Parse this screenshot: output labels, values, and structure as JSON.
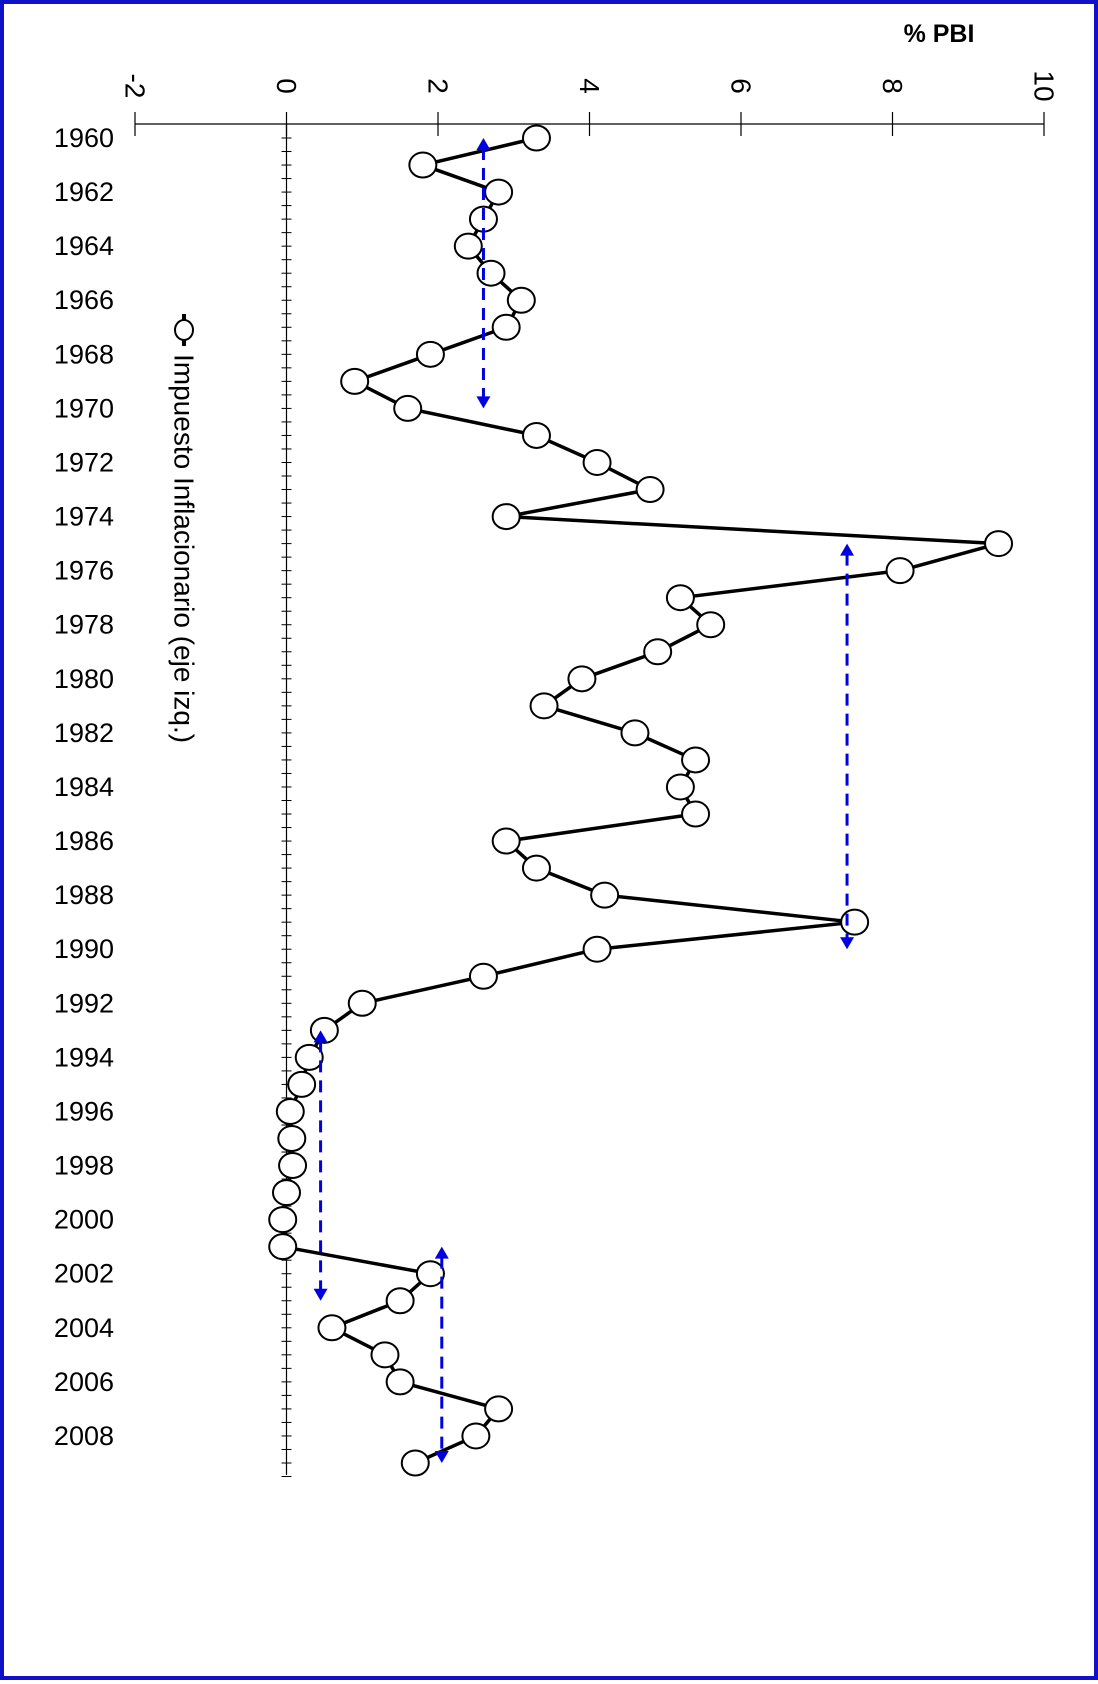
{
  "chart_data": {
    "type": "line",
    "title": "",
    "orientation": "rotated-90-clockwise",
    "unit_label": "% PBI",
    "xlabel": "",
    "ylabel": "% PBI",
    "ylim": [
      -2,
      10
    ],
    "y_ticks": [
      -2,
      0,
      2,
      4,
      6,
      8,
      10
    ],
    "xlim": [
      1960,
      2009
    ],
    "x_tick_labels": [
      1960,
      1962,
      1964,
      1966,
      1968,
      1970,
      1972,
      1974,
      1976,
      1978,
      1980,
      1982,
      1984,
      1986,
      1988,
      1990,
      1992,
      1994,
      1996,
      1998,
      2000,
      2002,
      2004,
      2006,
      2008
    ],
    "grid": false,
    "legend_position": "left, rotated",
    "series": [
      {
        "name": "Impuesto Inflacionario (eje izq.)",
        "color": "#000000",
        "marker": "open-circle",
        "x": [
          1960,
          1961,
          1962,
          1963,
          1964,
          1965,
          1966,
          1967,
          1968,
          1969,
          1970,
          1971,
          1972,
          1973,
          1974,
          1975,
          1976,
          1977,
          1978,
          1979,
          1980,
          1981,
          1982,
          1983,
          1984,
          1985,
          1986,
          1987,
          1988,
          1989,
          1990,
          1991,
          1992,
          1993,
          1994,
          1995,
          1996,
          1997,
          1998,
          1999,
          2000,
          2001,
          2002,
          2003,
          2004,
          2005,
          2006,
          2007,
          2008,
          2009
        ],
        "values": [
          3.3,
          1.8,
          2.8,
          2.6,
          2.4,
          2.7,
          3.1,
          2.9,
          1.9,
          0.9,
          1.6,
          3.3,
          4.1,
          4.8,
          2.9,
          9.4,
          8.1,
          5.2,
          5.6,
          4.9,
          3.9,
          3.4,
          4.6,
          5.4,
          5.2,
          5.4,
          2.9,
          3.3,
          4.2,
          7.5,
          4.1,
          2.6,
          1.0,
          0.5,
          0.3,
          0.2,
          0.05,
          0.07,
          0.08,
          0.0,
          -0.05,
          -0.05,
          1.9,
          1.5,
          0.6,
          1.3,
          1.5,
          2.8,
          2.5,
          1.7
        ]
      }
    ],
    "annotations": [
      {
        "type": "average-arrow",
        "color": "#0000e0",
        "from_year": 1960,
        "to_year": 1970,
        "value": 2.6
      },
      {
        "type": "average-arrow",
        "color": "#0000e0",
        "from_year": 1975,
        "to_year": 1990,
        "value": 7.4
      },
      {
        "type": "average-arrow",
        "color": "#0000e0",
        "from_year": 1993,
        "to_year": 2003,
        "value": 0.45
      },
      {
        "type": "average-arrow",
        "color": "#0000e0",
        "from_year": 2001,
        "to_year": 2009,
        "value": 2.05
      }
    ]
  }
}
